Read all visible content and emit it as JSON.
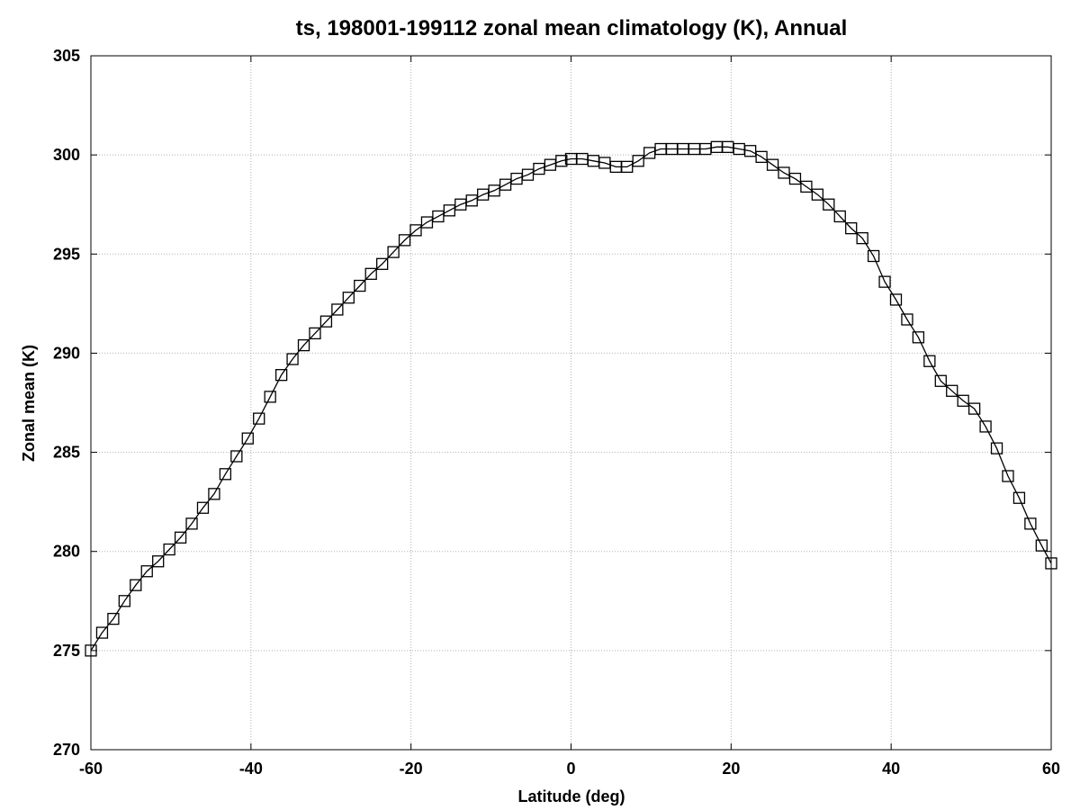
{
  "chart_data": {
    "type": "line",
    "title": "ts, 198001-199112 zonal mean climatology (K), Annual",
    "xlabel": "Latitude (deg)",
    "ylabel": "Zonal mean (K)",
    "xlim": [
      -60,
      60
    ],
    "ylim": [
      270,
      305
    ],
    "xticks": [
      -60,
      -40,
      -20,
      0,
      20,
      40,
      60
    ],
    "yticks": [
      270,
      275,
      280,
      285,
      290,
      295,
      300,
      305
    ],
    "grid": true,
    "marker": "square",
    "colors": {
      "line": "#000000",
      "grid": "#b0b0b0"
    },
    "series": [
      {
        "x": [
          -60,
          -58.6,
          -57.2,
          -55.8,
          -54.4,
          -53.0,
          -51.6,
          -50.2,
          -48.8,
          -47.4,
          -46.0,
          -44.6,
          -43.2,
          -41.8,
          -40.4,
          -39.0,
          -37.6,
          -36.2,
          -34.8,
          -33.4,
          -32.0,
          -30.6,
          -29.2,
          -27.8,
          -26.4,
          -25.0,
          -23.6,
          -22.2,
          -20.8,
          -19.4,
          -18.0,
          -16.6,
          -15.2,
          -13.8,
          -12.4,
          -11.0,
          -9.6,
          -8.2,
          -6.8,
          -5.4,
          -4.0,
          -2.6,
          -1.2,
          0.0,
          1.4,
          2.8,
          4.2,
          5.6,
          7.0,
          8.4,
          9.8,
          11.2,
          12.6,
          14.0,
          15.4,
          16.8,
          18.2,
          19.6,
          21.0,
          22.4,
          23.8,
          25.2,
          26.6,
          28.0,
          29.4,
          30.8,
          32.2,
          33.6,
          35.0,
          36.4,
          37.8,
          39.2,
          40.6,
          42.0,
          43.4,
          44.8,
          46.2,
          47.6,
          49.0,
          50.4,
          51.8,
          53.2,
          54.6,
          56.0,
          57.4,
          58.8,
          60.0
        ],
        "y": [
          275.0,
          275.9,
          276.6,
          277.5,
          278.3,
          279.0,
          279.5,
          280.1,
          280.7,
          281.4,
          282.2,
          282.9,
          283.9,
          284.8,
          285.7,
          286.7,
          287.8,
          288.9,
          289.7,
          290.4,
          291.0,
          291.6,
          292.2,
          292.8,
          293.4,
          294.0,
          294.5,
          295.1,
          295.7,
          296.2,
          296.6,
          296.9,
          297.2,
          297.5,
          297.7,
          298.0,
          298.2,
          298.5,
          298.8,
          299.0,
          299.3,
          299.5,
          299.7,
          299.8,
          299.8,
          299.7,
          299.6,
          299.4,
          299.4,
          299.7,
          300.1,
          300.3,
          300.3,
          300.3,
          300.3,
          300.3,
          300.4,
          300.4,
          300.3,
          300.2,
          299.9,
          299.5,
          299.1,
          298.8,
          298.4,
          298.0,
          297.5,
          296.9,
          296.3,
          295.8,
          294.9,
          293.6,
          292.7,
          291.7,
          290.8,
          289.6,
          288.6,
          288.1,
          287.6,
          287.2,
          286.3,
          285.2,
          283.8,
          282.7,
          281.4,
          280.3,
          279.4
        ]
      }
    ]
  }
}
